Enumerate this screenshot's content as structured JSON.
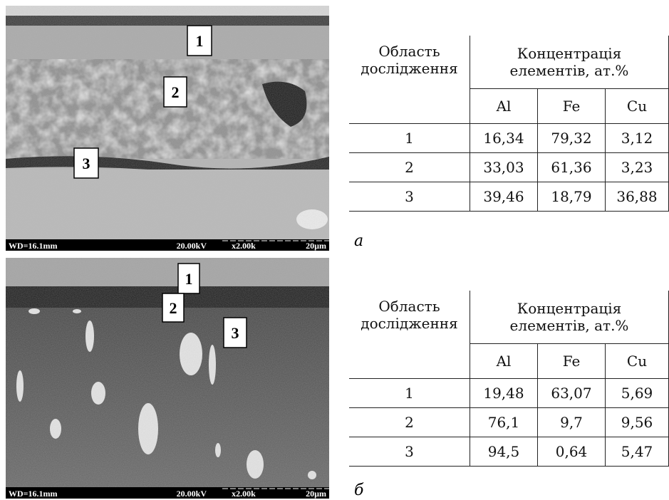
{
  "panels": [
    {
      "image": {
        "markers": [
          "1",
          "2",
          "3"
        ],
        "info_bar": [
          "WD=16.1mm",
          "20.00kV",
          "x2.00k",
          "20µm"
        ]
      },
      "table": {
        "header": [
          "Область дослідження",
          "Концентрація елементів, ат.%"
        ],
        "elements": [
          "Al",
          "Fe",
          "Cu"
        ],
        "rows": [
          [
            "1",
            "16,34",
            "79,32",
            "3,12"
          ],
          [
            "2",
            "33,03",
            "61,36",
            "3,23"
          ],
          [
            "3",
            "39,46",
            "18,79",
            "36,88"
          ]
        ]
      },
      "label": "а"
    },
    {
      "image": {
        "markers": [
          "1",
          "2",
          "3"
        ],
        "info_bar": [
          "WD=16.1mm",
          "20.00kV",
          "x2.00k",
          "20µm"
        ]
      },
      "table": {
        "header": [
          "Область дослідження",
          "Концентрація елементів, ат.%"
        ],
        "elements": [
          "Al",
          "Fe",
          "Cu"
        ],
        "rows": [
          [
            "1",
            "19,48",
            "63,07",
            "5,69"
          ],
          [
            "2",
            "76,1",
            "9,7",
            "9,56"
          ],
          [
            "3",
            "94,5",
            "0,64",
            "5,47"
          ]
        ]
      },
      "label": "б"
    }
  ]
}
